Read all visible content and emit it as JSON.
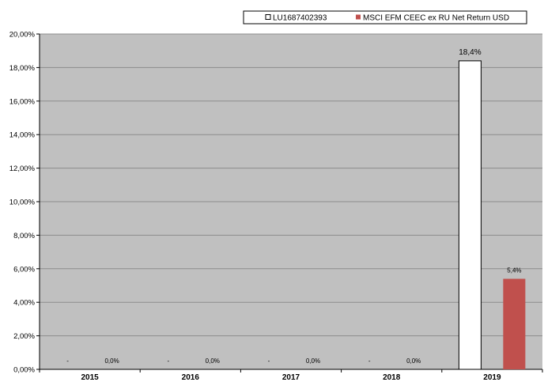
{
  "chart_data": {
    "type": "bar",
    "categories": [
      "2015",
      "2016",
      "2017",
      "2018",
      "2019"
    ],
    "series": [
      {
        "name": "LU1687402393",
        "values": [
          null,
          null,
          null,
          null,
          18.4
        ],
        "labels": [
          "-",
          "-",
          "-",
          "-",
          "18,4%"
        ],
        "color": "#ffffff"
      },
      {
        "name": "MSCI EFM CEEC ex RU Net Return USD",
        "values": [
          0.0,
          0.0,
          0.0,
          0.0,
          5.4
        ],
        "labels": [
          "0,0%",
          "0,0%",
          "0,0%",
          "0,0%",
          "5,4%"
        ],
        "color": "#c0504d"
      }
    ],
    "ylim": [
      0,
      20
    ],
    "yticks": [
      "0,00%",
      "2,00%",
      "4,00%",
      "6,00%",
      "8,00%",
      "10,00%",
      "12,00%",
      "14,00%",
      "16,00%",
      "18,00%",
      "20,00%"
    ],
    "grid": true,
    "plot_background": "#c0c0c0",
    "legend_position": "top-right",
    "title": "",
    "xlabel": "",
    "ylabel": ""
  }
}
